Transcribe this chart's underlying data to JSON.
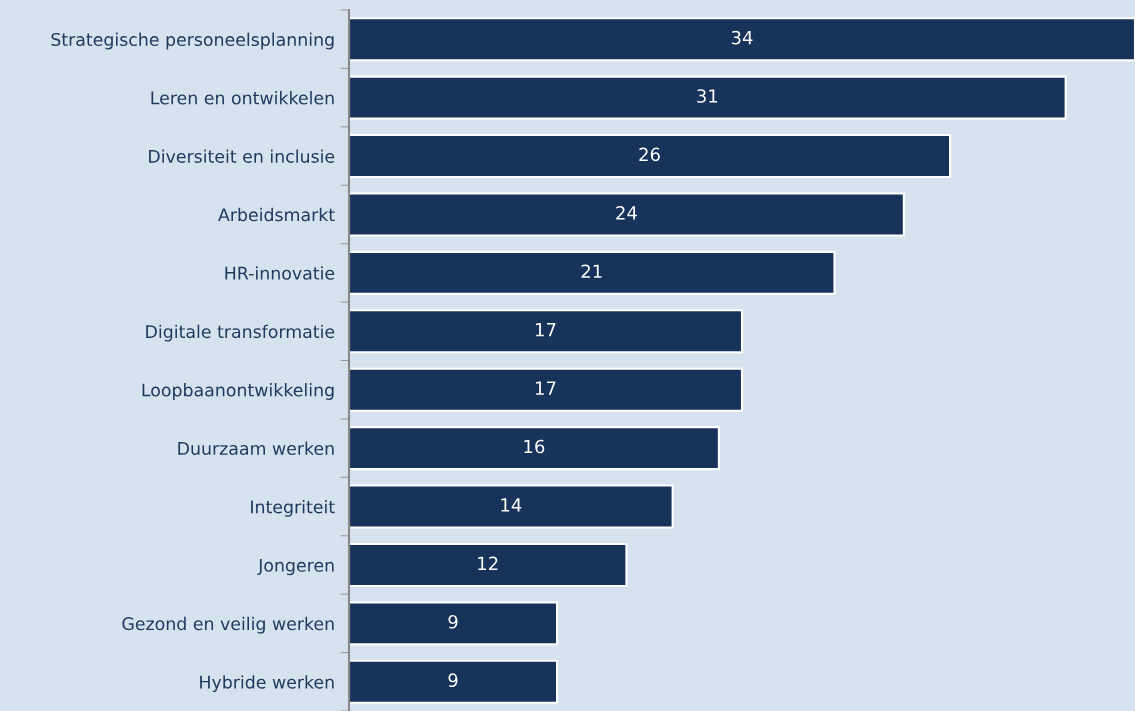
{
  "chart_data": {
    "type": "bar",
    "orientation": "horizontal",
    "categories": [
      "Strategische personeelsplanning",
      "Leren en ontwikkelen",
      "Diversiteit en inclusie",
      "Arbeidsmarkt",
      "HR-innovatie",
      "Digitale transformatie",
      "Loopbaanontwikkeling",
      "Duurzaam werken",
      "Integriteit",
      "Jongeren",
      "Gezond en veilig werken",
      "Hybride werken"
    ],
    "values": [
      34,
      31,
      26,
      24,
      21,
      17,
      17,
      16,
      14,
      12,
      9,
      9
    ],
    "color": "#17335a",
    "data_labels": true,
    "grid": false,
    "legend": false
  }
}
